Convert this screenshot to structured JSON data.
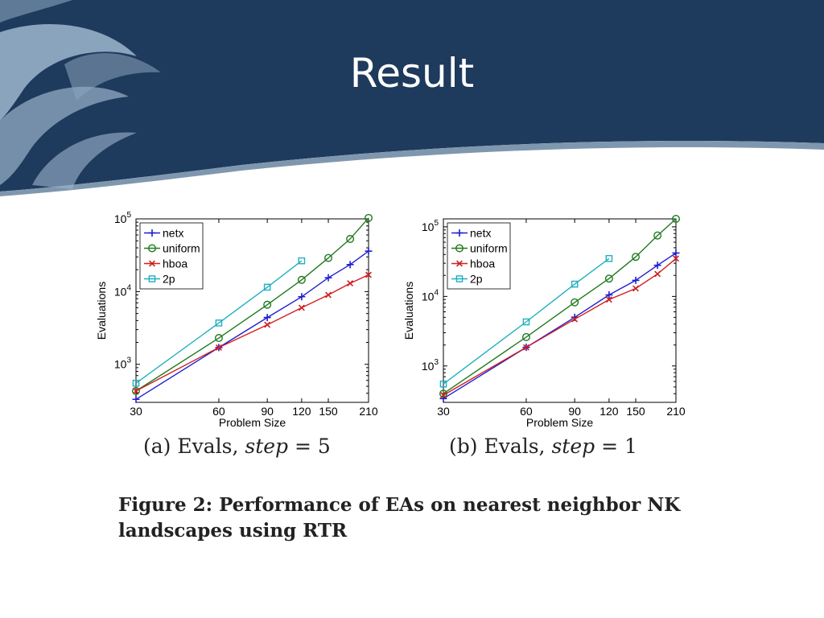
{
  "slide": {
    "title": "Result",
    "figure_caption": "Figure 2: Performance of EAs on nearest neighbor NK landscapes using RTR"
  },
  "chart_data": [
    {
      "type": "line",
      "caption_prefix": "(a) Evals, ",
      "caption_var": "step",
      "caption_eq": " = 5",
      "xlabel": "Problem Size",
      "ylabel": "Evaluations",
      "x_scale": "log",
      "y_scale": "log",
      "xlim": [
        30,
        210
      ],
      "ylim": [
        300,
        100000
      ],
      "x_ticks": [
        30,
        60,
        90,
        120,
        150,
        210
      ],
      "y_ticks": [
        {
          "value": 1000,
          "base": "10",
          "exp": "3"
        },
        {
          "value": 10000,
          "base": "10",
          "exp": "4"
        },
        {
          "value": 100000,
          "base": "10",
          "exp": "5"
        }
      ],
      "grid": false,
      "legend_position": "top-left",
      "series": [
        {
          "name": "netx",
          "color": "#1f1fd0",
          "marker": "plus",
          "x": [
            30,
            60,
            90,
            120,
            150,
            180,
            210
          ],
          "y": [
            330,
            1700,
            4400,
            8500,
            15500,
            23500,
            36000
          ]
        },
        {
          "name": "uniform",
          "color": "#1f7a1f",
          "marker": "circle",
          "x": [
            30,
            60,
            90,
            120,
            150,
            180,
            210
          ],
          "y": [
            430,
            2300,
            6600,
            14500,
            29000,
            53000,
            103000
          ]
        },
        {
          "name": "hboa",
          "color": "#d01f1f",
          "marker": "x",
          "x": [
            30,
            60,
            90,
            120,
            150,
            180,
            210
          ],
          "y": [
            430,
            1700,
            3500,
            6000,
            9000,
            13000,
            17000
          ]
        },
        {
          "name": "2p",
          "color": "#1fb0c0",
          "marker": "square",
          "x": [
            30,
            60,
            90,
            120
          ],
          "y": [
            550,
            3700,
            11500,
            26500
          ]
        }
      ]
    },
    {
      "type": "line",
      "caption_prefix": "(b) Evals, ",
      "caption_var": "step",
      "caption_eq": " = 1",
      "xlabel": "Problem Size",
      "ylabel": "Evaluations",
      "x_scale": "log",
      "y_scale": "log",
      "xlim": [
        30,
        210
      ],
      "ylim": [
        300,
        130000
      ],
      "x_ticks": [
        30,
        60,
        90,
        120,
        150,
        210
      ],
      "y_ticks": [
        {
          "value": 1000,
          "base": "10",
          "exp": "3"
        },
        {
          "value": 10000,
          "base": "10",
          "exp": "4"
        },
        {
          "value": 100000,
          "base": "10",
          "exp": "5"
        }
      ],
      "grid": false,
      "legend_position": "top-left",
      "series": [
        {
          "name": "netx",
          "color": "#1f1fd0",
          "marker": "plus",
          "x": [
            30,
            60,
            90,
            120,
            150,
            180,
            210
          ],
          "y": [
            340,
            1850,
            5000,
            10500,
            17000,
            28000,
            42000
          ]
        },
        {
          "name": "uniform",
          "color": "#1f7a1f",
          "marker": "circle",
          "x": [
            30,
            60,
            90,
            120,
            150,
            180,
            210
          ],
          "y": [
            400,
            2600,
            8200,
            18000,
            37000,
            75000,
            130000
          ]
        },
        {
          "name": "hboa",
          "color": "#d01f1f",
          "marker": "x",
          "x": [
            30,
            60,
            90,
            120,
            150,
            180,
            210
          ],
          "y": [
            380,
            1850,
            4700,
            9000,
            13000,
            21000,
            35000
          ]
        },
        {
          "name": "2p",
          "color": "#1fb0c0",
          "marker": "square",
          "x": [
            30,
            60,
            90,
            120
          ],
          "y": [
            550,
            4300,
            15000,
            35000
          ]
        }
      ]
    }
  ]
}
